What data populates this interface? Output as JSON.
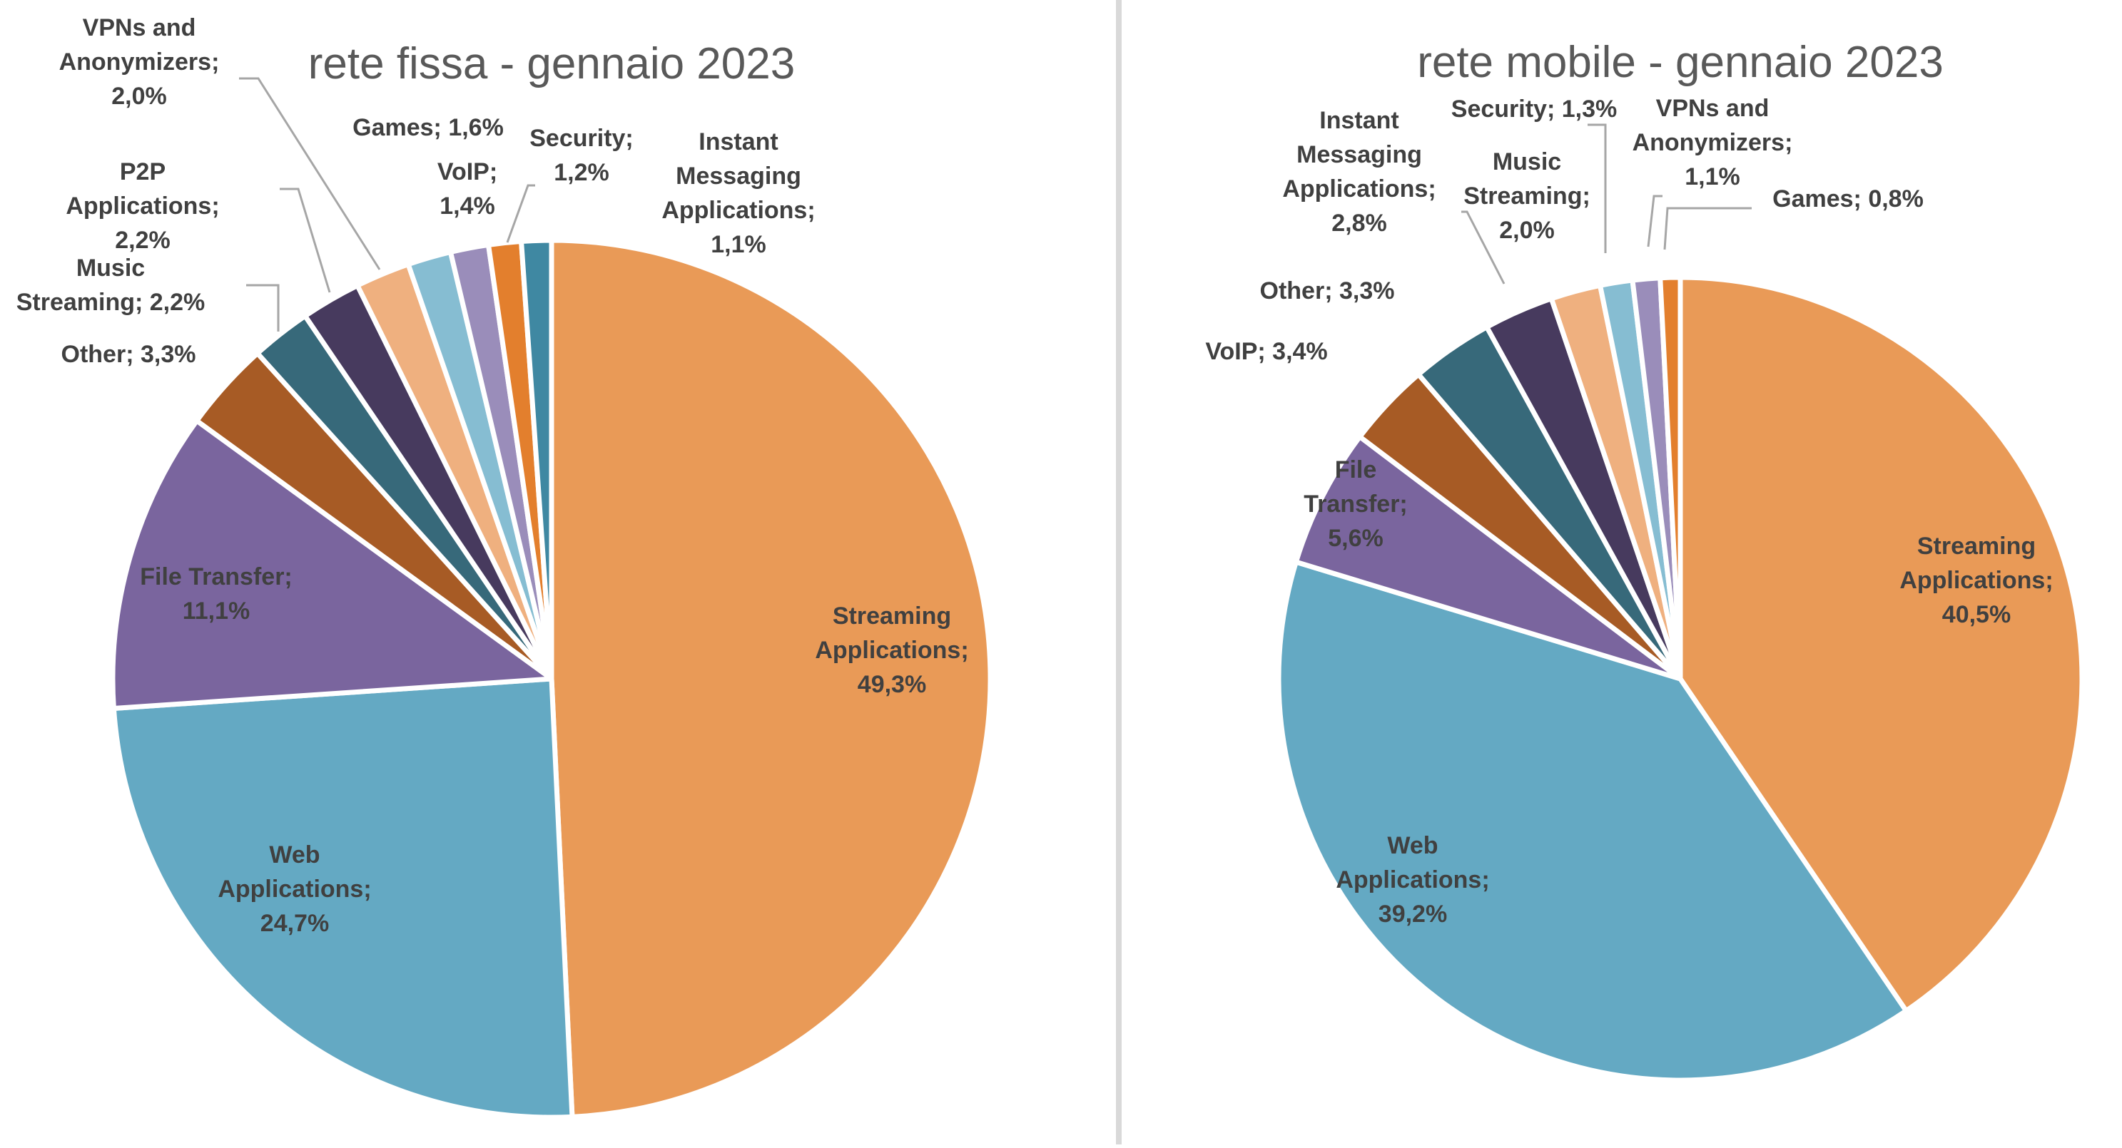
{
  "chart_data": [
    {
      "type": "pie",
      "title": "rete fissa - gennaio 2023",
      "slices": [
        {
          "label": "Streaming Applications",
          "value": 49.3,
          "display": "49,3%",
          "color": "#E99A57"
        },
        {
          "label": "Web Applications",
          "value": 24.7,
          "display": "24,7%",
          "color": "#64A9C3"
        },
        {
          "label": "File Transfer",
          "value": 11.1,
          "display": "11,1%",
          "color": "#7A659E"
        },
        {
          "label": "Other",
          "value": 3.3,
          "display": "3,3%",
          "color": "#A75B25"
        },
        {
          "label": "Music Streaming",
          "value": 2.2,
          "display": "2,2%",
          "color": "#37697A"
        },
        {
          "label": "P2P Applications",
          "value": 2.2,
          "display": "2,2%",
          "color": "#473A5E"
        },
        {
          "label": "VPNs and Anonymizers",
          "value": 2.0,
          "display": "2,0%",
          "color": "#EFB07F"
        },
        {
          "label": "Games",
          "value": 1.6,
          "display": "1,6%",
          "color": "#86BDD2"
        },
        {
          "label": "VoIP",
          "value": 1.4,
          "display": "1,4%",
          "color": "#9A8DBA"
        },
        {
          "label": "Security",
          "value": 1.2,
          "display": "1,2%",
          "color": "#E37F2D"
        },
        {
          "label": "Instant Messaging Applications",
          "value": 1.1,
          "display": "1,1%",
          "color": "#3F88A2"
        }
      ]
    },
    {
      "type": "pie",
      "title": "rete mobile - gennaio 2023",
      "slices": [
        {
          "label": "Streaming Applications",
          "value": 40.5,
          "display": "40,5%",
          "color": "#E99A57"
        },
        {
          "label": "Web Applications",
          "value": 39.2,
          "display": "39,2%",
          "color": "#64A9C3"
        },
        {
          "label": "File Transfer",
          "value": 5.6,
          "display": "5,6%",
          "color": "#7A659E"
        },
        {
          "label": "VoIP",
          "value": 3.4,
          "display": "3,4%",
          "color": "#A75B25"
        },
        {
          "label": "Other",
          "value": 3.3,
          "display": "3,3%",
          "color": "#37697A"
        },
        {
          "label": "Instant Messaging Applications",
          "value": 2.8,
          "display": "2,8%",
          "color": "#473A5E"
        },
        {
          "label": "Music Streaming",
          "value": 2.0,
          "display": "2,0%",
          "color": "#EFB07F"
        },
        {
          "label": "Security",
          "value": 1.3,
          "display": "1,3%",
          "color": "#86BDD2"
        },
        {
          "label": "VPNs and Anonymizers",
          "value": 1.1,
          "display": "1,1%",
          "color": "#9A8DBA"
        },
        {
          "label": "Games",
          "value": 0.8,
          "display": "0,8%",
          "color": "#E37F2D"
        }
      ]
    }
  ],
  "labels": {
    "fissa": [
      {
        "lines": [
          "Streaming",
          "Applications;",
          "49,3%"
        ]
      },
      {
        "lines": [
          "Web",
          "Applications;",
          "24,7%"
        ]
      },
      {
        "lines": [
          "File Transfer;",
          "11,1%"
        ]
      },
      {
        "lines": [
          "Other; 3,3%"
        ]
      },
      {
        "lines": [
          "Music",
          "Streaming; 2,2%"
        ]
      },
      {
        "lines": [
          "P2P",
          "Applications;",
          "2,2%"
        ]
      },
      {
        "lines": [
          "VPNs and",
          "Anonymizers;",
          "2,0%"
        ]
      },
      {
        "lines": [
          "Games; 1,6%"
        ]
      },
      {
        "lines": [
          "VoIP;",
          "1,4%"
        ]
      },
      {
        "lines": [
          "Security;",
          "1,2%"
        ]
      },
      {
        "lines": [
          "Instant",
          "Messaging",
          "Applications;",
          "1,1%"
        ]
      }
    ],
    "mobile": [
      {
        "lines": [
          "Streaming",
          "Applications;",
          "40,5%"
        ]
      },
      {
        "lines": [
          "Web",
          "Applications;",
          "39,2%"
        ]
      },
      {
        "lines": [
          "File",
          "Transfer;",
          "5,6%"
        ]
      },
      {
        "lines": [
          "VoIP; 3,4%"
        ]
      },
      {
        "lines": [
          "Other; 3,3%"
        ]
      },
      {
        "lines": [
          "Instant",
          "Messaging",
          "Applications;",
          "2,8%"
        ]
      },
      {
        "lines": [
          "Music",
          "Streaming;",
          "2,0%"
        ]
      },
      {
        "lines": [
          "Security; 1,3%"
        ]
      },
      {
        "lines": [
          "VPNs and",
          "Anonymizers;",
          "1,1%"
        ]
      },
      {
        "lines": [
          "Games; 0,8%"
        ]
      }
    ]
  }
}
